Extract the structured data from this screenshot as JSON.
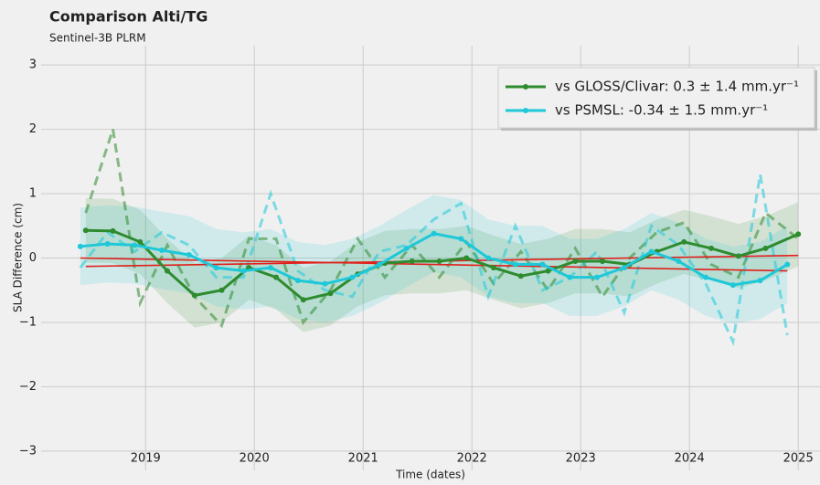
{
  "chart_data": {
    "type": "line",
    "title": "Comparison Alti/TG",
    "subtitle": "Sentinel-3B PLRM",
    "x_label": "Time (dates)",
    "y_label": "SLA Difference (cm)",
    "xlim": [
      2018.04,
      2025.2
    ],
    "ylim": [
      -3.3,
      3.3
    ],
    "xticks": [
      2019,
      2020,
      2021,
      2022,
      2023,
      2024,
      2025
    ],
    "yticks": [
      {
        "value": -3,
        "label": "−3"
      },
      {
        "value": -2,
        "label": "−2"
      },
      {
        "value": -1,
        "label": "−1"
      },
      0,
      1,
      2,
      3
    ],
    "grid": true,
    "legend": "upper right",
    "series": [
      {
        "name": "vs GLOSS/Clivar: 0.3 ± 1.4 mm.yr⁻¹",
        "color": "#2e8b2e",
        "trend_color": "#e0201b",
        "x": [
          2018.45,
          2018.7,
          2018.95,
          2019.2,
          2019.45,
          2019.7,
          2019.95,
          2020.2,
          2020.45,
          2020.7,
          2020.95,
          2021.2,
          2021.45,
          2021.7,
          2021.95,
          2022.2,
          2022.45,
          2022.7,
          2022.95,
          2023.2,
          2023.45,
          2023.7,
          2023.95,
          2024.2,
          2024.45,
          2024.7,
          2025.0
        ],
        "values": [
          0.43,
          0.42,
          0.25,
          -0.2,
          -0.58,
          -0.5,
          -0.15,
          -0.3,
          -0.65,
          -0.55,
          -0.25,
          -0.08,
          -0.05,
          -0.05,
          0.0,
          -0.15,
          -0.28,
          -0.2,
          -0.05,
          -0.05,
          -0.1,
          0.1,
          0.25,
          0.15,
          0.03,
          0.15,
          0.37
        ],
        "raw": [
          0.7,
          2.0,
          -0.7,
          0.2,
          -0.6,
          -1.05,
          0.3,
          0.3,
          -1.0,
          -0.5,
          0.3,
          -0.3,
          0.2,
          -0.3,
          0.25,
          -0.4,
          0.1,
          -0.5,
          0.15,
          -0.6,
          0.0,
          0.4,
          0.55,
          -0.1,
          -0.3,
          0.7,
          0.3
        ],
        "band_high": [
          0.93,
          0.92,
          0.75,
          0.3,
          -0.08,
          0,
          0.35,
          0.2,
          -0.15,
          -0.05,
          0.25,
          0.42,
          0.45,
          0.45,
          0.5,
          0.35,
          0.22,
          0.3,
          0.45,
          0.45,
          0.4,
          0.6,
          0.75,
          0.65,
          0.53,
          0.65,
          0.87
        ],
        "band_low": [
          -0.07,
          -0.08,
          -0.25,
          -0.7,
          -1.08,
          -1,
          -0.65,
          -0.8,
          -1.15,
          -1.05,
          -0.75,
          -0.58,
          -0.55,
          -0.55,
          -0.5,
          -0.65,
          -0.78,
          -0.7,
          -0.55,
          -0.55,
          -0.6,
          -0.4,
          -0.25,
          -0.35,
          -0.47,
          -0.35,
          -0.13
        ],
        "trend_x": [
          2018.45,
          2025.0
        ],
        "trend": [
          -0.13,
          0.04
        ]
      },
      {
        "name": "vs PSMSL: -0.34 ± 1.5 mm.yr⁻¹",
        "color": "#1ec8d8",
        "trend_color": "#e0201b",
        "x": [
          2018.4,
          2018.65,
          2018.9,
          2019.15,
          2019.4,
          2019.65,
          2019.9,
          2020.15,
          2020.4,
          2020.65,
          2020.9,
          2021.15,
          2021.4,
          2021.65,
          2021.9,
          2022.15,
          2022.4,
          2022.65,
          2022.9,
          2023.15,
          2023.4,
          2023.65,
          2023.9,
          2024.15,
          2024.4,
          2024.65,
          2024.9
        ],
        "values": [
          0.18,
          0.22,
          0.2,
          0.12,
          0.05,
          -0.15,
          -0.2,
          -0.15,
          -0.35,
          -0.4,
          -0.3,
          -0.1,
          0.15,
          0.38,
          0.3,
          0.0,
          -0.1,
          -0.1,
          -0.3,
          -0.3,
          -0.15,
          0.1,
          -0.05,
          -0.3,
          -0.42,
          -0.35,
          -0.1
        ],
        "raw": [
          -0.15,
          0.4,
          0.1,
          0.4,
          0.2,
          -0.3,
          -0.3,
          1.0,
          -0.2,
          -0.5,
          -0.6,
          0.1,
          0.2,
          0.6,
          0.85,
          -0.6,
          0.5,
          -0.5,
          -0.3,
          0.1,
          -0.85,
          0.5,
          0.2,
          -0.4,
          -1.3,
          1.3,
          -1.2
        ],
        "band_high": [
          0.78,
          0.82,
          0.8,
          0.72,
          0.65,
          0.45,
          0.4,
          0.45,
          0.25,
          0.2,
          0.3,
          0.5,
          0.75,
          0.98,
          0.9,
          0.6,
          0.5,
          0.5,
          0.3,
          0.3,
          0.45,
          0.7,
          0.55,
          0.3,
          0.18,
          0.25,
          0.5
        ],
        "band_low": [
          -0.42,
          -0.38,
          -0.4,
          -0.48,
          -0.55,
          -0.75,
          -0.8,
          -0.75,
          -0.95,
          -1,
          -0.9,
          -0.7,
          -0.45,
          -0.22,
          -0.3,
          -0.6,
          -0.7,
          -0.7,
          -0.9,
          -0.9,
          -0.75,
          -0.5,
          -0.65,
          -0.9,
          -1.02,
          -0.95,
          -0.7
        ],
        "trend_x": [
          2018.4,
          2024.9
        ],
        "trend": [
          0.0,
          -0.2
        ]
      }
    ]
  }
}
